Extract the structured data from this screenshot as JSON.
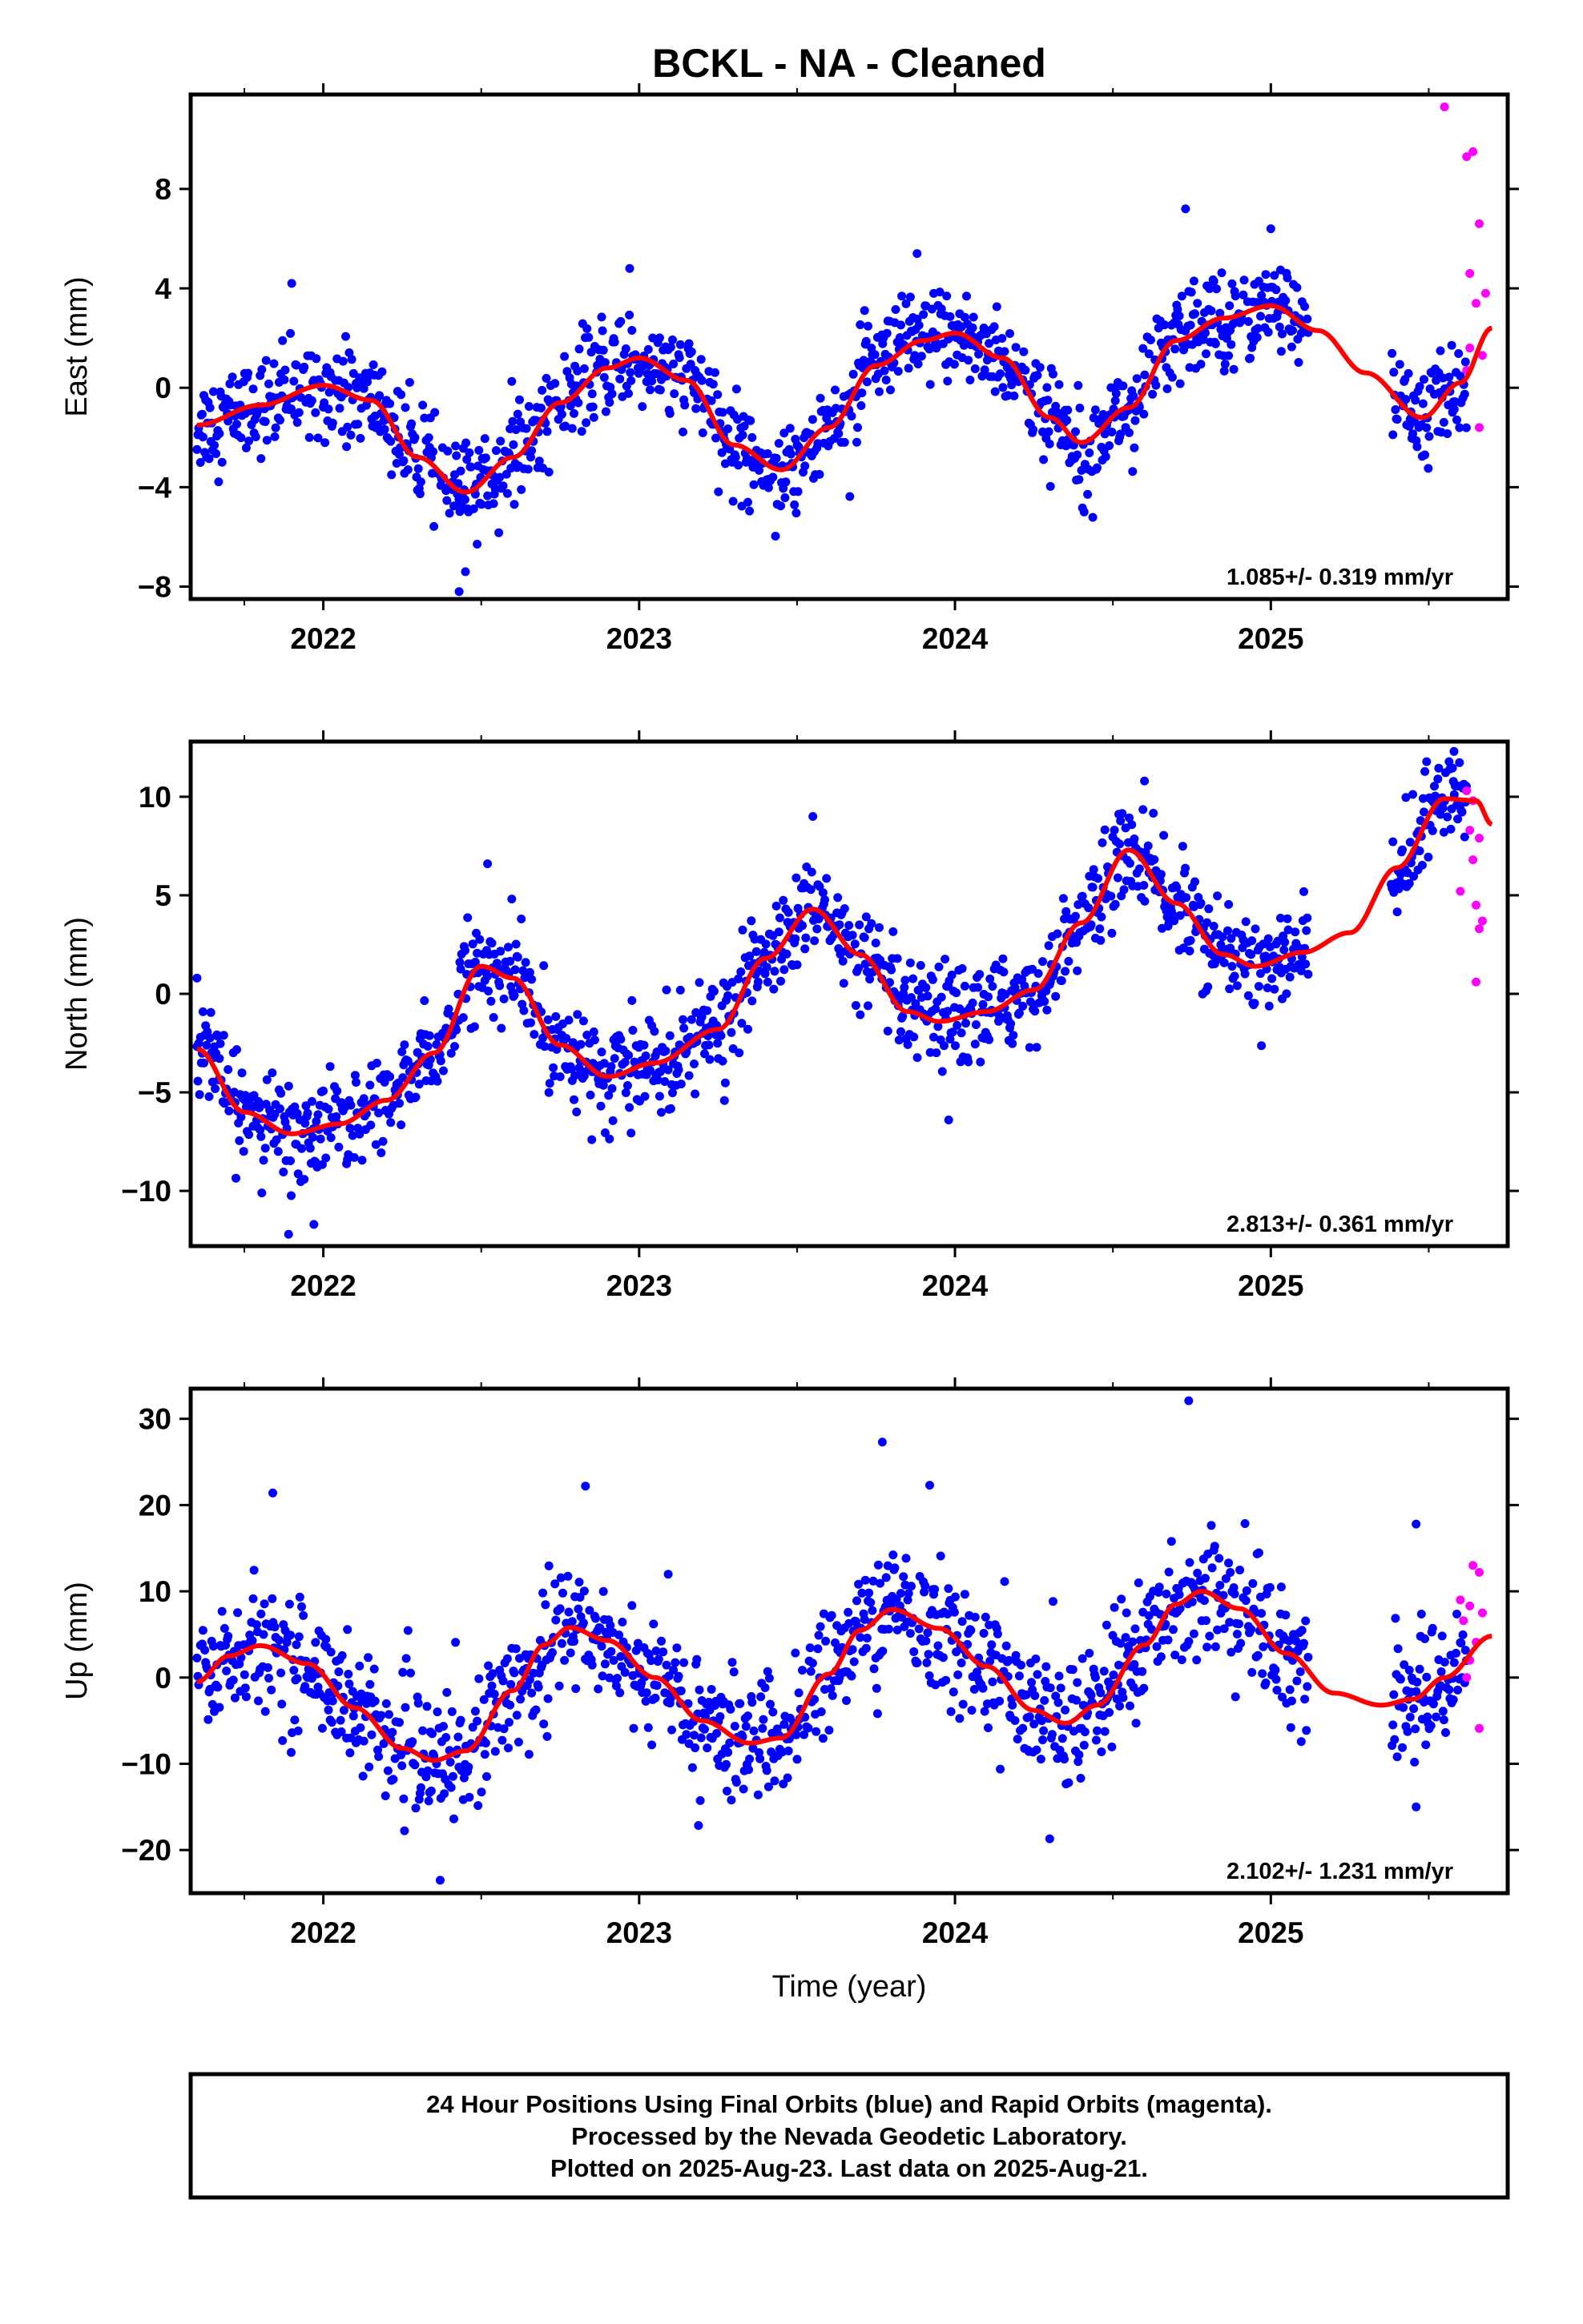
{
  "title": "BCKL  - NA - Cleaned",
  "xlabel": "Time (year)",
  "colors": {
    "final_orbits": "#0000ff",
    "rapid_orbits": "#ff00ff",
    "model_fit": "#ff0000"
  },
  "footer": {
    "line1": "24 Hour Positions Using Final Orbits (blue) and Rapid Orbits (magenta).",
    "line2": "Processed by the Nevada Geodetic Laboratory.",
    "line3": "Plotted on 2025-Aug-23. Last data on 2025-Aug-21."
  },
  "chart_data": [
    {
      "type": "scatter",
      "component": "east",
      "ylabel": "East (mm)",
      "rate_label": "1.085+/- 0.319 mm/yr",
      "xlim": [
        2021.58,
        2025.75
      ],
      "ylim": [
        -8.5,
        11.8
      ],
      "xticks": [
        2022,
        2023,
        2024,
        2025
      ],
      "xtick_labels": [
        "2022",
        "2023",
        "2024",
        "2025"
      ],
      "yticks": [
        -8,
        -4,
        0,
        4,
        8
      ],
      "ytick_labels": [
        "−8",
        "−4",
        "0",
        "4",
        "8"
      ],
      "fit": {
        "rate": 1.085,
        "annual_cos": 0.55,
        "annual_sin": -1.95,
        "semiannual_cos": 0.2,
        "semiannual_sin": 0.6,
        "ref_year": 2023.6,
        "offset": 0.0,
        "gap": [
          2025.1,
          2025.35
        ],
        "samples": [
          [
            2021.6,
            -1.5
          ],
          [
            2021.8,
            -0.7
          ],
          [
            2022.0,
            0.1
          ],
          [
            2022.15,
            -0.5
          ],
          [
            2022.3,
            -2.8
          ],
          [
            2022.45,
            -4.2
          ],
          [
            2022.6,
            -2.8
          ],
          [
            2022.75,
            -0.6
          ],
          [
            2022.9,
            0.8
          ],
          [
            2023.0,
            1.2
          ],
          [
            2023.15,
            0.3
          ],
          [
            2023.3,
            -2.3
          ],
          [
            2023.45,
            -3.3
          ],
          [
            2023.6,
            -1.6
          ],
          [
            2023.75,
            0.9
          ],
          [
            2023.9,
            1.9
          ],
          [
            2024.0,
            2.2
          ],
          [
            2024.15,
            1.2
          ],
          [
            2024.3,
            -1.2
          ],
          [
            2024.4,
            -2.2
          ],
          [
            2024.55,
            -0.8
          ],
          [
            2024.7,
            1.9
          ],
          [
            2024.85,
            2.8
          ],
          [
            2025.0,
            3.3
          ],
          [
            2025.15,
            2.3
          ],
          [
            2025.3,
            0.6
          ],
          [
            2025.48,
            -1.2
          ],
          [
            2025.6,
            0.2
          ],
          [
            2025.7,
            2.4
          ]
        ]
      },
      "rapid": [
        [
          2025.55,
          11.3
        ],
        [
          2025.62,
          9.3
        ],
        [
          2025.64,
          9.5
        ],
        [
          2025.66,
          6.6
        ],
        [
          2025.63,
          4.6
        ],
        [
          2025.68,
          3.8
        ],
        [
          2025.65,
          3.4
        ],
        [
          2025.63,
          1.6
        ],
        [
          2025.67,
          1.3
        ],
        [
          2025.62,
          0.7
        ],
        [
          2025.66,
          -1.6
        ]
      ],
      "scatter_sigma": 0.95,
      "outliers": [
        [
          2022.43,
          -8.2
        ],
        [
          2022.45,
          -7.4
        ],
        [
          2024.73,
          7.2
        ],
        [
          2023.88,
          5.4
        ],
        [
          2022.97,
          4.8
        ],
        [
          2021.9,
          4.2
        ],
        [
          2025.0,
          6.4
        ]
      ]
    },
    {
      "type": "scatter",
      "component": "north",
      "ylabel": "North (mm)",
      "rate_label": "2.813+/- 0.361 mm/yr",
      "xlim": [
        2021.58,
        2025.75
      ],
      "ylim": [
        -12.8,
        12.8
      ],
      "xticks": [
        2022,
        2023,
        2024,
        2025
      ],
      "xtick_labels": [
        "2022",
        "2023",
        "2024",
        "2025"
      ],
      "yticks": [
        -10,
        -5,
        0,
        5,
        10
      ],
      "ytick_labels": [
        "−10",
        "−5",
        "0",
        "5",
        "10"
      ],
      "fit": {
        "samples": [
          [
            2021.6,
            -2.8
          ],
          [
            2021.75,
            -6.0
          ],
          [
            2021.9,
            -7.1
          ],
          [
            2022.05,
            -6.6
          ],
          [
            2022.2,
            -5.4
          ],
          [
            2022.35,
            -3.0
          ],
          [
            2022.5,
            1.4
          ],
          [
            2022.6,
            0.8
          ],
          [
            2022.75,
            -2.6
          ],
          [
            2022.9,
            -4.2
          ],
          [
            2023.05,
            -3.5
          ],
          [
            2023.25,
            -1.8
          ],
          [
            2023.4,
            1.8
          ],
          [
            2023.55,
            4.3
          ],
          [
            2023.7,
            2.0
          ],
          [
            2023.85,
            -0.9
          ],
          [
            2023.95,
            -1.4
          ],
          [
            2024.1,
            -0.9
          ],
          [
            2024.25,
            0.2
          ],
          [
            2024.4,
            3.6
          ],
          [
            2024.55,
            7.3
          ],
          [
            2024.7,
            4.6
          ],
          [
            2024.85,
            2.0
          ],
          [
            2024.95,
            1.4
          ],
          [
            2025.1,
            2.1
          ],
          [
            2025.25,
            3.1
          ],
          [
            2025.4,
            6.4
          ],
          [
            2025.55,
            9.9
          ],
          [
            2025.65,
            9.8
          ],
          [
            2025.7,
            8.6
          ]
        ]
      },
      "rapid": [
        [
          2025.62,
          10.3
        ],
        [
          2025.64,
          9.8
        ],
        [
          2025.63,
          8.3
        ],
        [
          2025.66,
          7.9
        ],
        [
          2025.64,
          6.8
        ],
        [
          2025.6,
          5.2
        ],
        [
          2025.65,
          4.5
        ],
        [
          2025.67,
          3.7
        ],
        [
          2025.66,
          3.3
        ],
        [
          2025.65,
          0.6
        ]
      ],
      "scatter_sigma": 1.2,
      "outliers": [
        [
          2021.89,
          -12.2
        ],
        [
          2021.97,
          -11.7
        ],
        [
          2022.52,
          6.6
        ],
        [
          2023.55,
          9.0
        ],
        [
          2024.6,
          10.8
        ],
        [
          2025.58,
          12.3
        ],
        [
          2021.6,
          0.8
        ],
        [
          2022.85,
          -7.4
        ],
        [
          2023.98,
          -6.4
        ]
      ]
    },
    {
      "type": "scatter",
      "component": "up",
      "ylabel": "Up (mm)",
      "rate_label": "2.102+/- 1.231 mm/yr",
      "xlim": [
        2021.58,
        2025.75
      ],
      "ylim": [
        -25,
        33.5
      ],
      "xticks": [
        2022,
        2023,
        2024,
        2025
      ],
      "xtick_labels": [
        "2022",
        "2023",
        "2024",
        "2025"
      ],
      "yticks": [
        -20,
        -10,
        0,
        10,
        20,
        30
      ],
      "ytick_labels": [
        "−20",
        "−10",
        "0",
        "10",
        "20",
        "30"
      ],
      "fit": {
        "samples": [
          [
            2021.6,
            -0.5
          ],
          [
            2021.7,
            2.5
          ],
          [
            2021.8,
            3.7
          ],
          [
            2021.95,
            1.6
          ],
          [
            2022.1,
            -3.5
          ],
          [
            2022.25,
            -8.2
          ],
          [
            2022.35,
            -9.6
          ],
          [
            2022.45,
            -8.5
          ],
          [
            2022.6,
            -1.5
          ],
          [
            2022.7,
            3.8
          ],
          [
            2022.78,
            5.8
          ],
          [
            2022.9,
            4.3
          ],
          [
            2023.05,
            0.0
          ],
          [
            2023.2,
            -5.0
          ],
          [
            2023.35,
            -7.6
          ],
          [
            2023.45,
            -7.0
          ],
          [
            2023.6,
            0.4
          ],
          [
            2023.7,
            5.5
          ],
          [
            2023.8,
            7.9
          ],
          [
            2023.95,
            5.7
          ],
          [
            2024.1,
            1.3
          ],
          [
            2024.25,
            -3.8
          ],
          [
            2024.35,
            -5.3
          ],
          [
            2024.45,
            -3.2
          ],
          [
            2024.6,
            3.8
          ],
          [
            2024.7,
            8.5
          ],
          [
            2024.78,
            10.0
          ],
          [
            2024.9,
            8.0
          ],
          [
            2025.05,
            2.8
          ],
          [
            2025.2,
            -1.8
          ],
          [
            2025.35,
            -3.2
          ],
          [
            2025.45,
            -2.5
          ],
          [
            2025.55,
            0.0
          ],
          [
            2025.7,
            4.8
          ]
        ]
      },
      "rapid": [
        [
          2025.64,
          13.0
        ],
        [
          2025.66,
          12.2
        ],
        [
          2025.6,
          9.0
        ],
        [
          2025.63,
          8.3
        ],
        [
          2025.67,
          7.5
        ],
        [
          2025.61,
          6.6
        ],
        [
          2025.65,
          4.1
        ],
        [
          2025.63,
          2.0
        ],
        [
          2025.62,
          0.0
        ],
        [
          2025.66,
          -5.9
        ]
      ],
      "scatter_sigma": 3.6,
      "outliers": [
        [
          2024.74,
          32.1
        ],
        [
          2023.77,
          27.3
        ],
        [
          2021.84,
          21.4
        ],
        [
          2022.83,
          22.2
        ],
        [
          2023.92,
          22.3
        ],
        [
          2022.37,
          -23.5
        ],
        [
          2024.3,
          -18.7
        ],
        [
          2025.46,
          -15.0
        ],
        [
          2025.46,
          17.8
        ]
      ]
    }
  ]
}
